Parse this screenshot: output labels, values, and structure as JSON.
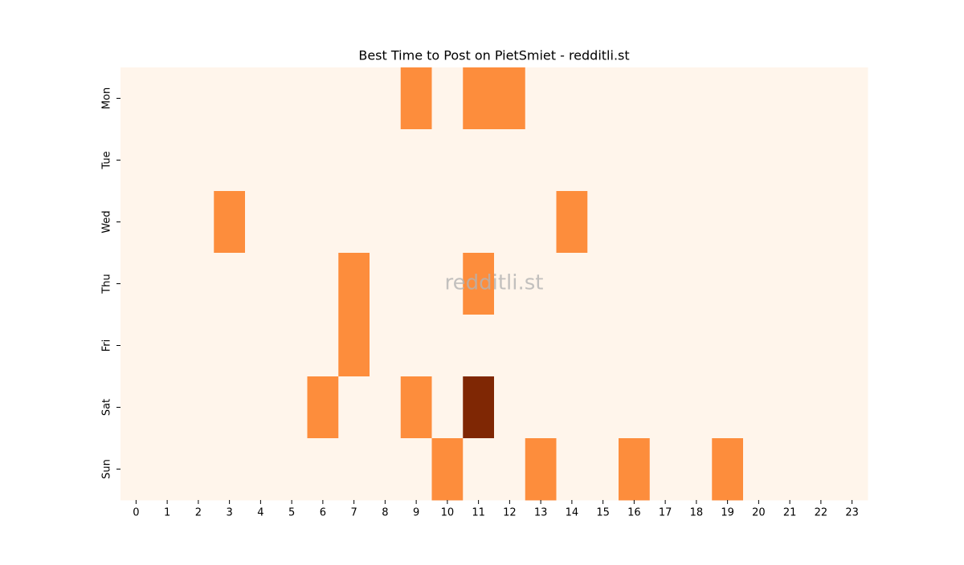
{
  "chart_data": {
    "type": "heatmap",
    "title": "Best Time to Post on PietSmiet - redditli.st",
    "watermark": "redditli.st",
    "xcategories": [
      0,
      1,
      2,
      3,
      4,
      5,
      6,
      7,
      8,
      9,
      10,
      11,
      12,
      13,
      14,
      15,
      16,
      17,
      18,
      19,
      20,
      21,
      22,
      23
    ],
    "ycategories": [
      "Mon",
      "Tue",
      "Wed",
      "Thu",
      "Fri",
      "Sat",
      "Sun"
    ],
    "values": [
      [
        0,
        0,
        0,
        0,
        0,
        0,
        0,
        0,
        0,
        1,
        0,
        1,
        1,
        0,
        0,
        0,
        0,
        0,
        0,
        0,
        0,
        0,
        0,
        0
      ],
      [
        0,
        0,
        0,
        0,
        0,
        0,
        0,
        0,
        0,
        0,
        0,
        0,
        0,
        0,
        0,
        0,
        0,
        0,
        0,
        0,
        0,
        0,
        0,
        0
      ],
      [
        0,
        0,
        0,
        1,
        0,
        0,
        0,
        0,
        0,
        0,
        0,
        0,
        0,
        0,
        1,
        0,
        0,
        0,
        0,
        0,
        0,
        0,
        0,
        0
      ],
      [
        0,
        0,
        0,
        0,
        0,
        0,
        0,
        1,
        0,
        0,
        0,
        1,
        0,
        0,
        0,
        0,
        0,
        0,
        0,
        0,
        0,
        0,
        0,
        0
      ],
      [
        0,
        0,
        0,
        0,
        0,
        0,
        0,
        1,
        0,
        0,
        0,
        0,
        0,
        0,
        0,
        0,
        0,
        0,
        0,
        0,
        0,
        0,
        0,
        0
      ],
      [
        0,
        0,
        0,
        0,
        0,
        0,
        1,
        0,
        0,
        1,
        0,
        2,
        0,
        0,
        0,
        0,
        0,
        0,
        0,
        0,
        0,
        0,
        0,
        0
      ],
      [
        0,
        0,
        0,
        0,
        0,
        0,
        0,
        0,
        0,
        0,
        1,
        0,
        0,
        1,
        0,
        0,
        1,
        0,
        0,
        1,
        0,
        0,
        0,
        0
      ]
    ],
    "clim": [
      0,
      2
    ],
    "colors": [
      "#fff5eb",
      "#fd8d3c",
      "#7f2704"
    ]
  }
}
